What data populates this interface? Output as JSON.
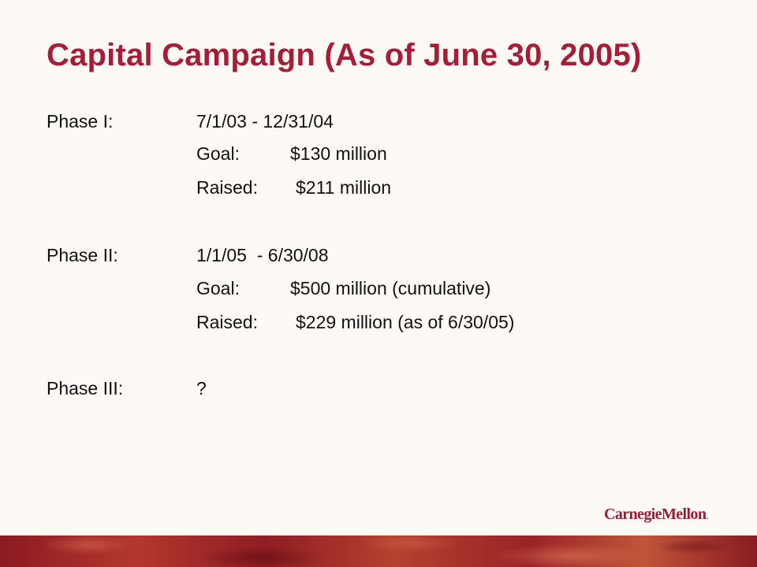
{
  "slide": {
    "title": "Capital Campaign (As of June 30, 2005)"
  },
  "phases": [
    {
      "label": "Phase I:",
      "dates": "7/1/03 - 12/31/04",
      "goal_label": "Goal:",
      "goal_value": "$130 million",
      "raised_label": "Raised:",
      "raised_value": "$211 million"
    },
    {
      "label": "Phase II:",
      "dates": "1/1/05  - 6/30/08",
      "goal_label": "Goal:",
      "goal_value": "$500 million (cumulative)",
      "raised_label": "Raised:",
      "raised_value": "$229 million (as of 6/30/05)"
    },
    {
      "label": "Phase III:",
      "dates": "?"
    }
  ],
  "logo": {
    "text": "CarnegieMellon",
    "mark": "."
  },
  "colors": {
    "title": "#a51d36",
    "body_text": "#111111",
    "background": "#fdfaf6",
    "footer_band": "#9a2326"
  }
}
